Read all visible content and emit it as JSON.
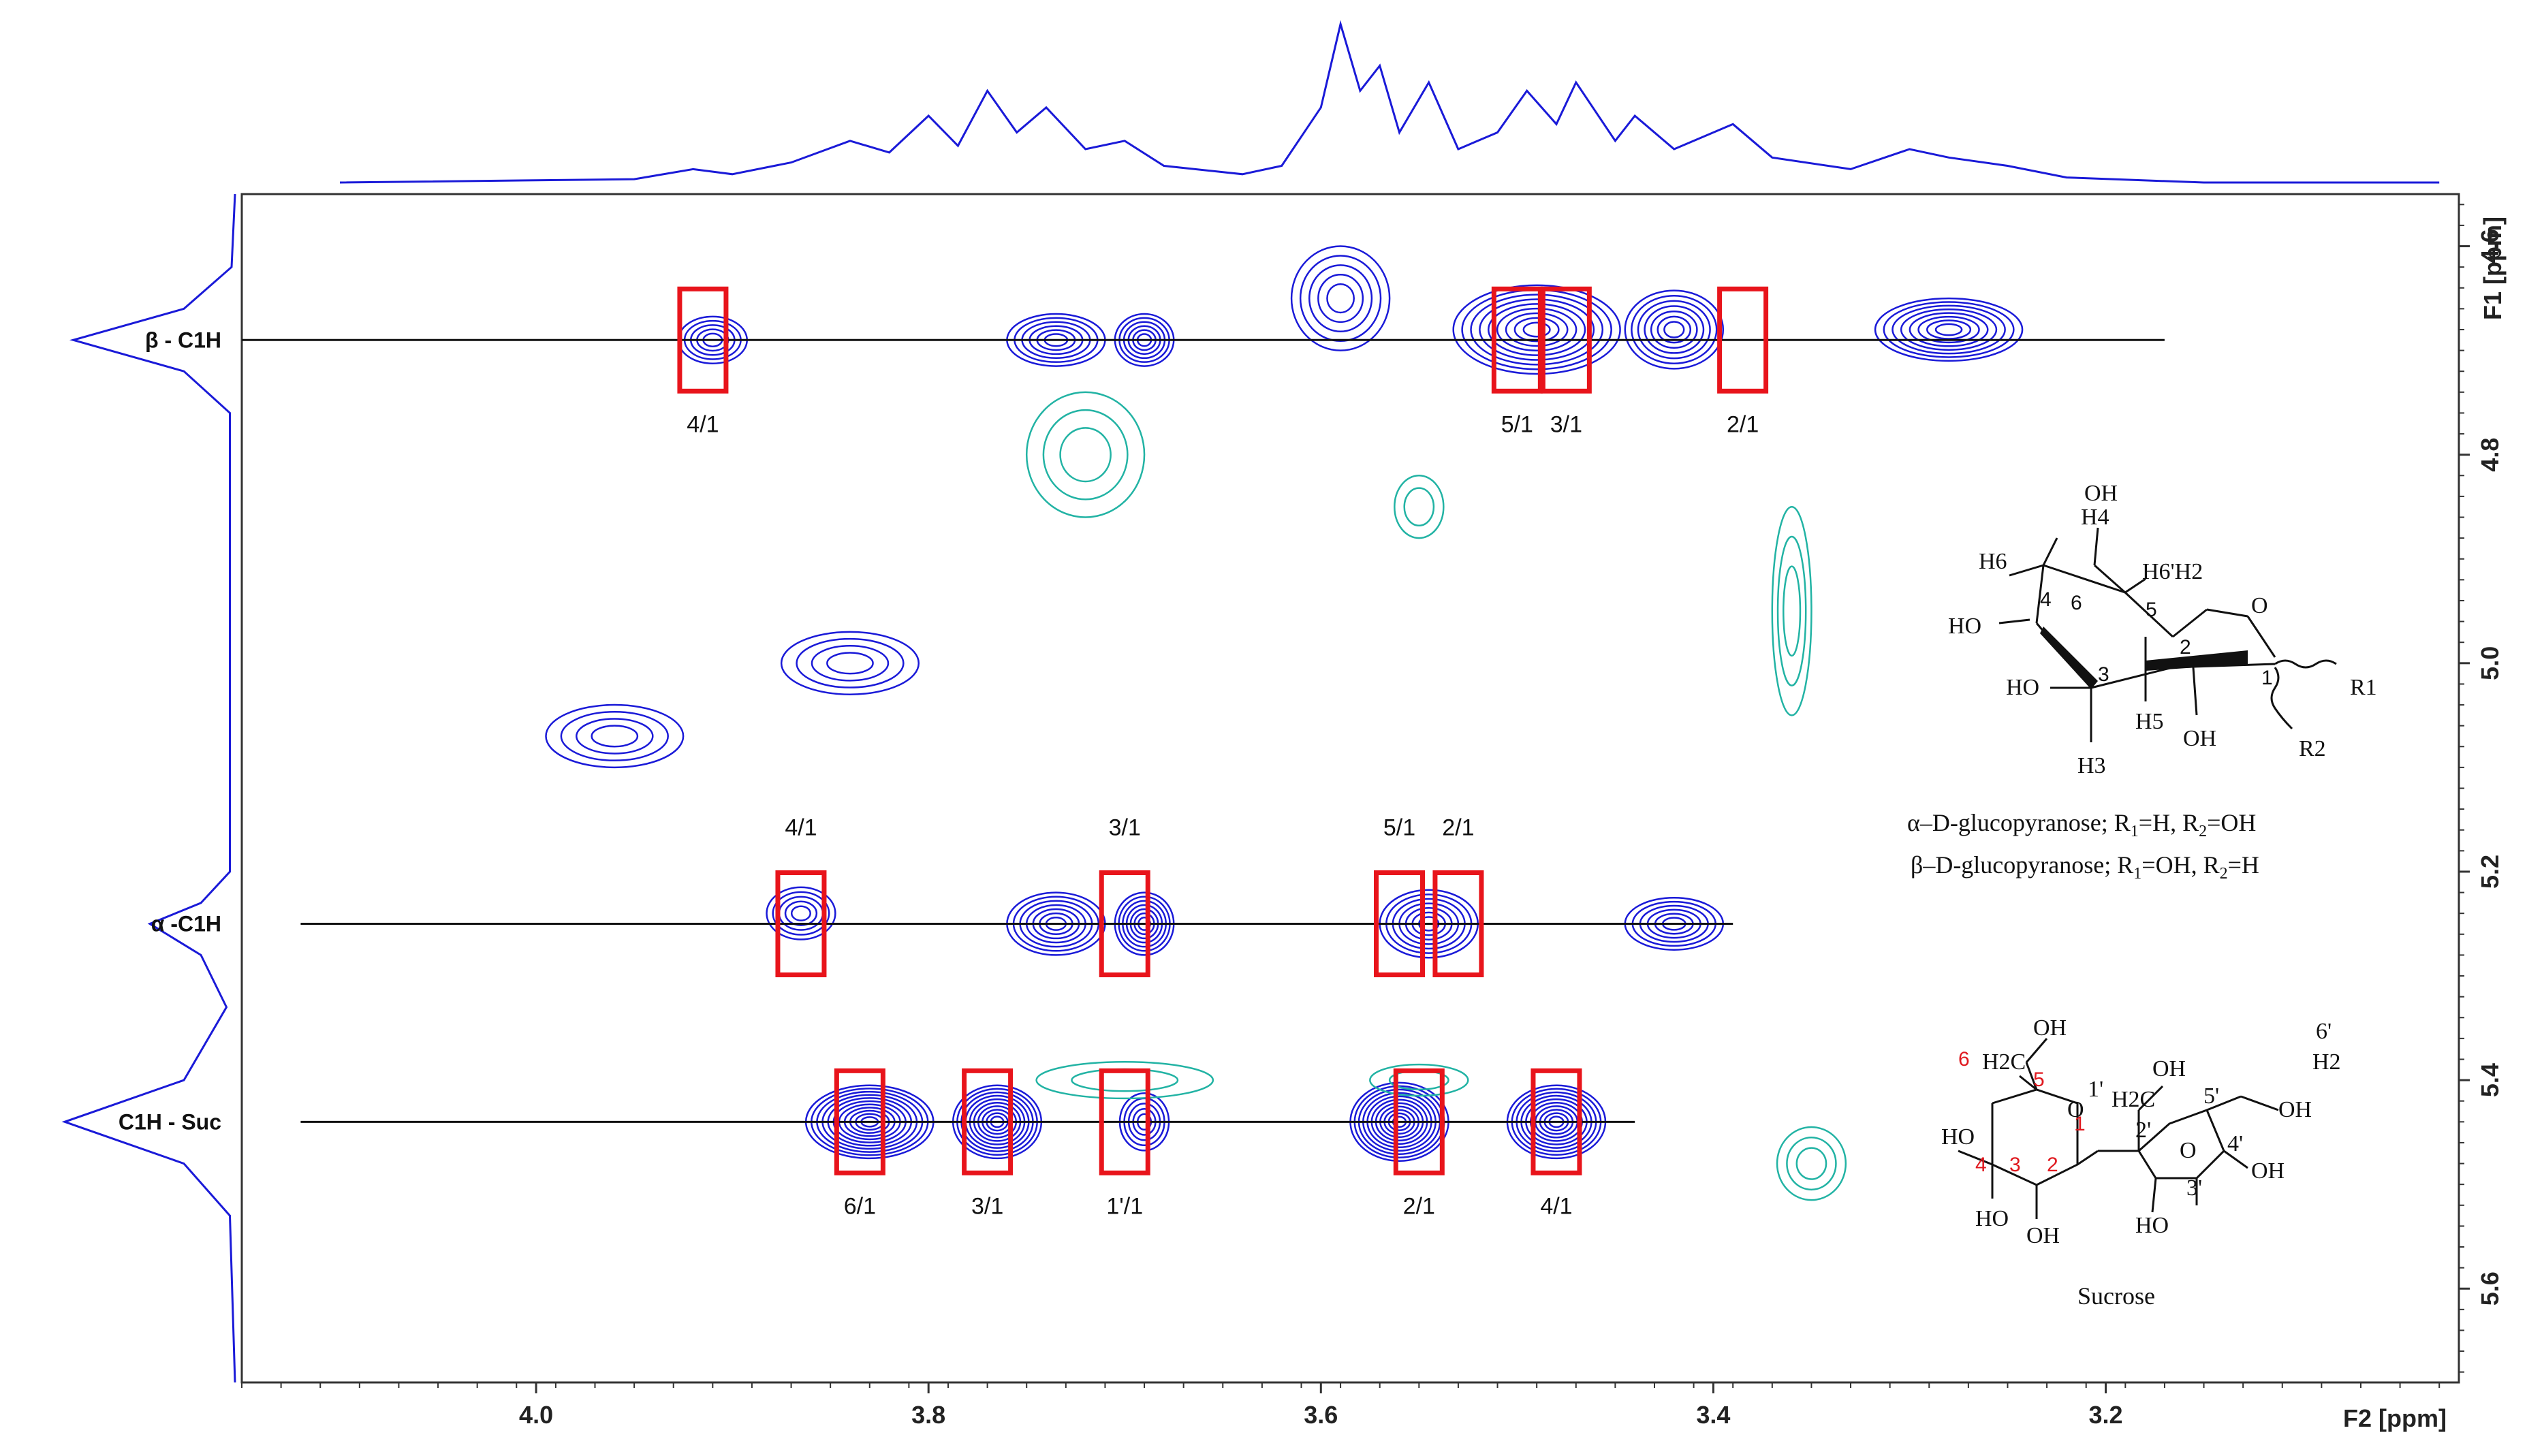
{
  "chart_data": {
    "type": "scatter",
    "subtype": "2D NMR contour plot (TOCSY) with 1D projections",
    "x_axis": {
      "label": "F2 [ppm]",
      "range": [
        4.15,
        3.02
      ],
      "reversed": true,
      "ticks": [
        "4.0",
        "3.8",
        "3.6",
        "3.4",
        "3.2"
      ]
    },
    "y_axis": {
      "label": "F1 [ppm]",
      "range": [
        4.55,
        5.69
      ],
      "reversed": true,
      "ticks": [
        "4.6",
        "4.8",
        "5.0",
        "5.2",
        "5.4",
        "5.6"
      ],
      "side": "right"
    },
    "reference_lines": [
      {
        "label": "β - C1H",
        "y": 4.69,
        "x_from": 4.15,
        "x_to": 3.17
      },
      {
        "label": "α -C1H",
        "y": 5.25,
        "x_from": 4.12,
        "x_to": 3.39
      },
      {
        "label": "C1H - Suc",
        "y": 5.44,
        "x_from": 4.12,
        "x_to": 3.44
      }
    ],
    "peaks": [
      {
        "label": "4/1",
        "x": 3.915,
        "y": 4.69,
        "row": "beta"
      },
      {
        "label": "5/1",
        "x": 3.5,
        "y": 4.69,
        "row": "beta"
      },
      {
        "label": "3/1",
        "x": 3.475,
        "y": 4.69,
        "row": "beta"
      },
      {
        "label": "2/1",
        "x": 3.385,
        "y": 4.69,
        "row": "beta"
      },
      {
        "label": "4/1",
        "x": 3.865,
        "y": 5.25,
        "row": "alpha"
      },
      {
        "label": "3/1",
        "x": 3.7,
        "y": 5.25,
        "row": "alpha"
      },
      {
        "label": "5/1",
        "x": 3.56,
        "y": 5.25,
        "row": "alpha"
      },
      {
        "label": "2/1",
        "x": 3.53,
        "y": 5.25,
        "row": "alpha"
      },
      {
        "label": "6/1",
        "x": 3.835,
        "y": 5.44,
        "row": "sucrose"
      },
      {
        "label": "3/1",
        "x": 3.77,
        "y": 5.44,
        "row": "sucrose"
      },
      {
        "label": "1'/1",
        "x": 3.7,
        "y": 5.44,
        "row": "sucrose"
      },
      {
        "label": "2/1",
        "x": 3.55,
        "y": 5.44,
        "row": "sucrose"
      },
      {
        "label": "4/1",
        "x": 3.48,
        "y": 5.44,
        "row": "sucrose"
      }
    ],
    "contour_clusters": [
      {
        "x": 3.91,
        "y": 4.69,
        "w": 0.035,
        "h": 0.045,
        "color": "#1a1ad8",
        "levels": 5
      },
      {
        "x": 3.735,
        "y": 4.69,
        "w": 0.05,
        "h": 0.05,
        "color": "#1a1ad8",
        "levels": 6
      },
      {
        "x": 3.69,
        "y": 4.69,
        "w": 0.03,
        "h": 0.05,
        "color": "#1a1ad8",
        "levels": 6
      },
      {
        "x": 3.49,
        "y": 4.68,
        "w": 0.085,
        "h": 0.085,
        "color": "#1a1ad8",
        "levels": 9
      },
      {
        "x": 3.42,
        "y": 4.68,
        "w": 0.05,
        "h": 0.075,
        "color": "#1a1ad8",
        "levels": 7
      },
      {
        "x": 3.59,
        "y": 4.65,
        "w": 0.05,
        "h": 0.1,
        "color": "#1a1ad8",
        "levels": 5
      },
      {
        "x": 3.28,
        "y": 4.68,
        "w": 0.075,
        "h": 0.06,
        "color": "#1a1ad8",
        "levels": 8
      },
      {
        "x": 3.84,
        "y": 5.0,
        "w": 0.07,
        "h": 0.06,
        "color": "#1a1ad8",
        "levels": 4
      },
      {
        "x": 3.96,
        "y": 5.07,
        "w": 0.07,
        "h": 0.06,
        "color": "#1a1ad8",
        "levels": 4
      },
      {
        "x": 3.865,
        "y": 5.24,
        "w": 0.035,
        "h": 0.05,
        "color": "#1a1ad8",
        "levels": 5
      },
      {
        "x": 3.735,
        "y": 5.25,
        "w": 0.05,
        "h": 0.06,
        "color": "#1a1ad8",
        "levels": 7
      },
      {
        "x": 3.69,
        "y": 5.25,
        "w": 0.03,
        "h": 0.06,
        "color": "#1a1ad8",
        "levels": 7
      },
      {
        "x": 3.545,
        "y": 5.25,
        "w": 0.05,
        "h": 0.065,
        "color": "#1a1ad8",
        "levels": 7
      },
      {
        "x": 3.42,
        "y": 5.25,
        "w": 0.05,
        "h": 0.05,
        "color": "#1a1ad8",
        "levels": 6
      },
      {
        "x": 3.83,
        "y": 5.44,
        "w": 0.065,
        "h": 0.07,
        "color": "#1a1ad8",
        "levels": 11
      },
      {
        "x": 3.765,
        "y": 5.44,
        "w": 0.045,
        "h": 0.07,
        "color": "#1a1ad8",
        "levels": 10
      },
      {
        "x": 3.69,
        "y": 5.44,
        "w": 0.025,
        "h": 0.055,
        "color": "#1a1ad8",
        "levels": 5
      },
      {
        "x": 3.56,
        "y": 5.44,
        "w": 0.05,
        "h": 0.075,
        "color": "#1a1ad8",
        "levels": 11
      },
      {
        "x": 3.48,
        "y": 5.44,
        "w": 0.05,
        "h": 0.07,
        "color": "#1a1ad8",
        "levels": 10
      },
      {
        "x": 3.72,
        "y": 4.8,
        "w": 0.06,
        "h": 0.12,
        "color": "#22b3a4",
        "levels": 3
      },
      {
        "x": 3.36,
        "y": 4.95,
        "w": 0.02,
        "h": 0.2,
        "color": "#22b3a4",
        "levels": 3
      },
      {
        "x": 3.7,
        "y": 5.4,
        "w": 0.09,
        "h": 0.035,
        "color": "#22b3a4",
        "levels": 2
      },
      {
        "x": 3.55,
        "y": 5.4,
        "w": 0.05,
        "h": 0.03,
        "color": "#22b3a4",
        "levels": 2
      },
      {
        "x": 3.35,
        "y": 5.48,
        "w": 0.035,
        "h": 0.07,
        "color": "#22b3a4",
        "levels": 3
      },
      {
        "x": 3.55,
        "y": 4.85,
        "w": 0.025,
        "h": 0.06,
        "color": "#22b3a4",
        "levels": 2
      }
    ],
    "top_projection": [
      [
        4.1,
        0.0
      ],
      [
        3.95,
        0.02
      ],
      [
        3.92,
        0.08
      ],
      [
        3.9,
        0.05
      ],
      [
        3.87,
        0.12
      ],
      [
        3.84,
        0.25
      ],
      [
        3.82,
        0.18
      ],
      [
        3.8,
        0.4
      ],
      [
        3.785,
        0.22
      ],
      [
        3.77,
        0.55
      ],
      [
        3.755,
        0.3
      ],
      [
        3.74,
        0.45
      ],
      [
        3.72,
        0.2
      ],
      [
        3.7,
        0.25
      ],
      [
        3.68,
        0.1
      ],
      [
        3.64,
        0.05
      ],
      [
        3.62,
        0.1
      ],
      [
        3.6,
        0.45
      ],
      [
        3.59,
        0.95
      ],
      [
        3.58,
        0.55
      ],
      [
        3.57,
        0.7
      ],
      [
        3.56,
        0.3
      ],
      [
        3.545,
        0.6
      ],
      [
        3.53,
        0.2
      ],
      [
        3.51,
        0.3
      ],
      [
        3.495,
        0.55
      ],
      [
        3.48,
        0.35
      ],
      [
        3.47,
        0.6
      ],
      [
        3.45,
        0.25
      ],
      [
        3.44,
        0.4
      ],
      [
        3.42,
        0.2
      ],
      [
        3.39,
        0.35
      ],
      [
        3.37,
        0.15
      ],
      [
        3.33,
        0.08
      ],
      [
        3.3,
        0.2
      ],
      [
        3.28,
        0.15
      ],
      [
        3.25,
        0.1
      ],
      [
        3.22,
        0.03
      ],
      [
        3.15,
        0.0
      ],
      [
        3.03,
        0.0
      ]
    ],
    "left_projection": [
      [
        4.55,
        0.0
      ],
      [
        4.62,
        0.02
      ],
      [
        4.66,
        0.3
      ],
      [
        4.69,
        0.95
      ],
      [
        4.72,
        0.3
      ],
      [
        4.76,
        0.03
      ],
      [
        5.2,
        0.03
      ],
      [
        5.23,
        0.2
      ],
      [
        5.25,
        0.5
      ],
      [
        5.28,
        0.2
      ],
      [
        5.33,
        0.05
      ],
      [
        5.4,
        0.3
      ],
      [
        5.44,
        1.0
      ],
      [
        5.48,
        0.3
      ],
      [
        5.53,
        0.03
      ],
      [
        5.69,
        0.0
      ]
    ],
    "structure_caption_alpha": "α–D-glucopyranose; R1=H, R2=OH",
    "structure_caption_beta": "β–D-glucopyranose; R1=OH, R2=H",
    "sucrose_caption": "Sucrose"
  },
  "glucose_structure": {
    "atoms": [
      "H4",
      "OH",
      "H6",
      "H6'H2",
      "O",
      "HO",
      "HO",
      "H5",
      "OH",
      "R1",
      "R2",
      "H3"
    ],
    "ring_numbers": [
      "4",
      "6",
      "5",
      "2",
      "3",
      "1"
    ],
    "caption_alpha": {
      "prefix": "α–D-glucopyranose; R",
      "sub1": "1",
      "mid": "=H, R",
      "sub2": "2",
      "suffix": "=OH"
    },
    "caption_beta": {
      "prefix": "β–D-glucopyranose; R",
      "sub1": "1",
      "mid": "=OH, R",
      "sub2": "2",
      "suffix": "=H"
    }
  },
  "sucrose_structure": {
    "labels": [
      "OH",
      "H2C",
      "6",
      "5",
      "1'",
      "O",
      "HO",
      "1",
      "4",
      "3",
      "2",
      "HO",
      "OH",
      "O",
      "H2C",
      "OH",
      "2'",
      "5'",
      "6'",
      "H2",
      "OH",
      "4'",
      "OH",
      "3'",
      "HO"
    ],
    "caption": "Sucrose"
  },
  "colors": {
    "positive": "#1a1ad8",
    "negative": "#22b3a4",
    "highlight": "#e8141b",
    "line": "#111111"
  }
}
